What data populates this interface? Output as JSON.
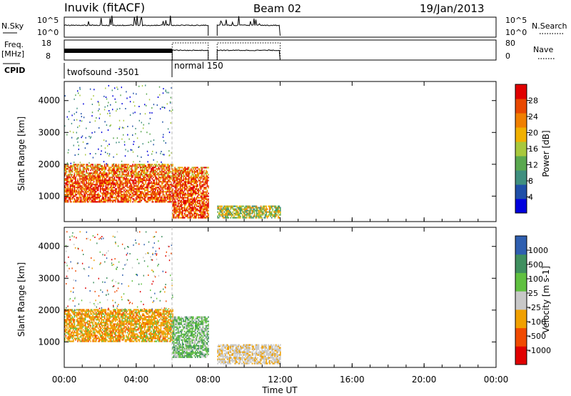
{
  "header": {
    "title": "Inuvik (fitACF)",
    "beam": "Beam 02",
    "date": "19/Jan/2013"
  },
  "panels": {
    "nsky": {
      "left_label": "N.Sky",
      "left_ticks": [
        "10^5",
        "10^0"
      ],
      "right_ticks": [
        "10^5",
        "10^0"
      ],
      "right_label": "N.Search"
    },
    "freq": {
      "left_label_1": "Freq.",
      "left_label_2": "[MHz]",
      "left_ticks": [
        "18",
        "8"
      ],
      "right_ticks": [
        "80",
        "0"
      ],
      "right_label": "Nave"
    },
    "cpid": {
      "label": "CPID",
      "programs": [
        {
          "name": "twofsound -3501",
          "start": "00:00",
          "end": "06:00"
        },
        {
          "name": "normal 150",
          "start": "06:00",
          "end": "12:00"
        }
      ]
    }
  },
  "colors": {
    "power_scale": [
      "#0000dd",
      "#1f4fa8",
      "#3f8f7f",
      "#5aa84f",
      "#a8c83c",
      "#f0b000",
      "#f07f00",
      "#e84800",
      "#e00000"
    ],
    "velocity_scale": [
      "#e00000",
      "#f04a00",
      "#f0a000",
      "#c8c8c8",
      "#60c040",
      "#3f8f5f",
      "#2f5fb0"
    ],
    "background": "#ffffff"
  },
  "chart_data": [
    {
      "type": "heatmap",
      "name": "power",
      "ylabel": "Slant Range [km]",
      "yticks": [
        "1000",
        "2000",
        "3000",
        "4000"
      ],
      "ylim": [
        200,
        4600
      ],
      "xlim": [
        0,
        24
      ],
      "colorbar": {
        "label": "Power [dB]",
        "ticks": [
          "4",
          "8",
          "12",
          "16",
          "20",
          "24",
          "28"
        ],
        "range": [
          0,
          32
        ]
      },
      "approx_regions": [
        {
          "t": [
            0.0,
            6.0
          ],
          "range_km": [
            800,
            2000
          ],
          "power_db": 26
        },
        {
          "t": [
            6.0,
            8.0
          ],
          "range_km": [
            300,
            1900
          ],
          "power_db": 22
        },
        {
          "t": [
            8.5,
            12.0
          ],
          "range_km": [
            300,
            700
          ],
          "power_db": 12
        }
      ]
    },
    {
      "type": "heatmap",
      "name": "velocity",
      "ylabel": "Slant Range [km]",
      "yticks": [
        "1000",
        "2000",
        "3000",
        "4000"
      ],
      "ylim": [
        200,
        4600
      ],
      "xlim": [
        0,
        24
      ],
      "colorbar": {
        "label": "Velocity [m s-1]",
        "ticks": [
          "1000",
          "500",
          "100",
          "25",
          "-25",
          "-100",
          "-500",
          "-1000"
        ]
      },
      "approx_regions": [
        {
          "t": [
            0.0,
            6.0
          ],
          "range_km": [
            1000,
            2000
          ],
          "velocity_ms": -200
        },
        {
          "t": [
            6.0,
            8.0
          ],
          "range_km": [
            500,
            1800
          ],
          "velocity_ms": 200
        },
        {
          "t": [
            8.5,
            12.0
          ],
          "range_km": [
            300,
            900
          ],
          "velocity_ms": 0
        }
      ]
    }
  ],
  "xaxis": {
    "label": "Time UT",
    "ticks": [
      "00:00",
      "04:00",
      "08:00",
      "12:00",
      "16:00",
      "20:00",
      "00:00"
    ]
  }
}
